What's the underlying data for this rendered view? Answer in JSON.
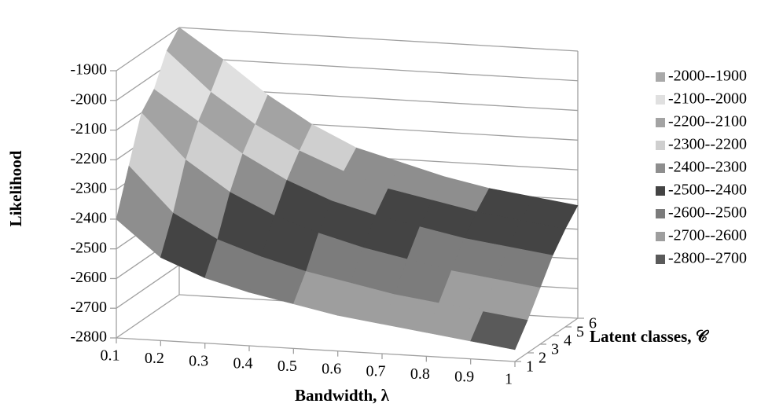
{
  "chart_data": {
    "type": "surface",
    "x_label": "Bandwidth, λ",
    "y_label": "Latent classes, 𝒞",
    "z_label": "Likelihood",
    "x": [
      0.1,
      0.2,
      0.3,
      0.4,
      0.5,
      0.6,
      0.7,
      0.8,
      0.9,
      1
    ],
    "y": [
      1,
      2,
      3,
      4,
      5,
      6
    ],
    "values": [
      [
        -2400,
        -2520,
        -2580,
        -2620,
        -2650,
        -2680,
        -2700,
        -2720,
        -2740,
        -2760
      ],
      [
        -2250,
        -2400,
        -2480,
        -2530,
        -2570,
        -2600,
        -2630,
        -2650,
        -2670,
        -2690
      ],
      [
        -2100,
        -2250,
        -2350,
        -2420,
        -2470,
        -2510,
        -2540,
        -2570,
        -2590,
        -2610
      ],
      [
        -2050,
        -2150,
        -2250,
        -2330,
        -2390,
        -2430,
        -2460,
        -2490,
        -2510,
        -2530
      ],
      [
        -1950,
        -2080,
        -2180,
        -2260,
        -2320,
        -2370,
        -2400,
        -2430,
        -2450,
        -2470
      ],
      [
        -1900,
        -2000,
        -2110,
        -2200,
        -2270,
        -2310,
        -2350,
        -2380,
        -2400,
        -2420
      ]
    ],
    "zlim": [
      -2800,
      -1900
    ],
    "zticks": [
      -2800,
      -2700,
      -2600,
      -2500,
      -2400,
      -2300,
      -2200,
      -2100,
      -2000,
      -1900
    ],
    "bands": [
      {
        "name": "-2000--1900",
        "color": "#a9a9a9"
      },
      {
        "name": "-2100--2000",
        "color": "#e0e0e0"
      },
      {
        "name": "-2200--2100",
        "color": "#a3a3a3"
      },
      {
        "name": "-2300--2200",
        "color": "#cfcfcf"
      },
      {
        "name": "-2400--2300",
        "color": "#8e8e8e"
      },
      {
        "name": "-2500--2400",
        "color": "#444444"
      },
      {
        "name": "-2600--2500",
        "color": "#7c7c7c"
      },
      {
        "name": "-2700--2600",
        "color": "#9e9e9e"
      },
      {
        "name": "-2800--2700",
        "color": "#5a5a5a"
      }
    ],
    "grid": true
  }
}
